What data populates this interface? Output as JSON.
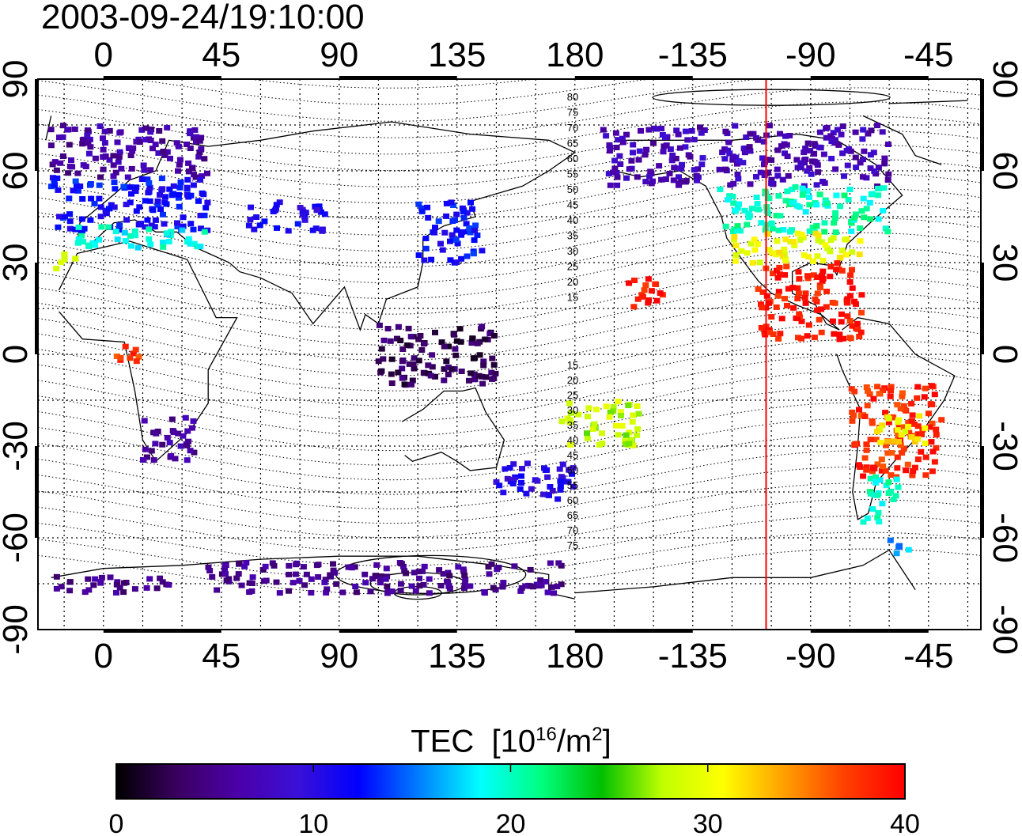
{
  "title": "2003-09-24/19:10:00",
  "map": {
    "lon_ticks": [
      "0",
      "45",
      "90",
      "135",
      "180",
      "-135",
      "-90",
      "-45"
    ],
    "lat_ticks": [
      "90",
      "60",
      "30",
      "0",
      "-30",
      "-60",
      "-90"
    ],
    "lon_range": [
      -25,
      335
    ],
    "lat_range": [
      -90,
      90
    ],
    "grid": "dotted, every 15 degrees",
    "terminator_line": {
      "color": "#ff0000",
      "lon": -107
    },
    "contour_labels_north": [
      "80",
      "75",
      "70",
      "65",
      "60",
      "55",
      "50",
      "45",
      "40",
      "35",
      "30",
      "25",
      "20",
      "15"
    ],
    "contour_labels_south": [
      "15",
      "20",
      "25",
      "30",
      "35",
      "40",
      "45",
      "50",
      "55",
      "60",
      "65",
      "70",
      "75"
    ]
  },
  "colorbar": {
    "title_main": "TEC",
    "title_unit_pre": "[10",
    "title_unit_exp": "16",
    "title_unit_mid": "/m",
    "title_unit_exp2": "2",
    "title_unit_post": "]",
    "ticks": [
      "0",
      "10",
      "20",
      "30",
      "40"
    ],
    "range": [
      0,
      40
    ],
    "colors": [
      "#000000",
      "#3a0060",
      "#4b00a8",
      "#3a10d8",
      "#0000ff",
      "#0080ff",
      "#00ffff",
      "#00ff80",
      "#00c000",
      "#c0ff00",
      "#ffff00",
      "#ffa000",
      "#ff4000",
      "#ff0000"
    ]
  },
  "chart_data": {
    "type": "heatmap",
    "title": "2003-09-24/19:10:00",
    "xlabel": "",
    "ylabel": "",
    "colorbar_label": "TEC [10^16/m^2]",
    "colorbar_range": [
      0,
      40
    ],
    "regions": [
      {
        "lon": [
          -20,
          40
        ],
        "lat": [
          58,
          75
        ],
        "tec": 6
      },
      {
        "lon": [
          -20,
          40
        ],
        "lat": [
          40,
          58
        ],
        "tec": 12
      },
      {
        "lon": [
          -10,
          40
        ],
        "lat": [
          35,
          42
        ],
        "tec": 19
      },
      {
        "lon": [
          -20,
          -10
        ],
        "lat": [
          28,
          33
        ],
        "tec": 30
      },
      {
        "lon": [
          5,
          15
        ],
        "lat": [
          -5,
          3
        ],
        "tec": 38
      },
      {
        "lon": [
          15,
          35
        ],
        "lat": [
          -35,
          -20
        ],
        "tec": 6
      },
      {
        "lon": [
          55,
          85
        ],
        "lat": [
          40,
          50
        ],
        "tec": 11
      },
      {
        "lon": [
          120,
          145
        ],
        "lat": [
          30,
          50
        ],
        "tec": 12
      },
      {
        "lon": [
          105,
          150
        ],
        "lat": [
          -10,
          10
        ],
        "tec": 3
      },
      {
        "lon": [
          150,
          180
        ],
        "lat": [
          -48,
          -35
        ],
        "tec": 10
      },
      {
        "lon": [
          175,
          205
        ],
        "lat": [
          -30,
          -15
        ],
        "tec": 28
      },
      {
        "lon": [
          200,
          215
        ],
        "lat": [
          15,
          25
        ],
        "tec": 39
      },
      {
        "lon": [
          190,
          230
        ],
        "lat": [
          55,
          75
        ],
        "tec": 7
      },
      {
        "lon": [
          235,
          300
        ],
        "lat": [
          55,
          75
        ],
        "tec": 7
      },
      {
        "lon": [
          235,
          300
        ],
        "lat": [
          40,
          55
        ],
        "tec": 20
      },
      {
        "lon": [
          240,
          290
        ],
        "lat": [
          30,
          40
        ],
        "tec": 30
      },
      {
        "lon": [
          250,
          290
        ],
        "lat": [
          5,
          30
        ],
        "tec": 39
      },
      {
        "lon": [
          285,
          320
        ],
        "lat": [
          -40,
          -10
        ],
        "tec": 38
      },
      {
        "lon": [
          295,
          315
        ],
        "lat": [
          -30,
          -20
        ],
        "tec": 31
      },
      {
        "lon": [
          290,
          305
        ],
        "lat": [
          -55,
          -40
        ],
        "tec": 20
      },
      {
        "lon": [
          300,
          310
        ],
        "lat": [
          -65,
          -60
        ],
        "tec": 16
      },
      {
        "lon": [
          40,
          175
        ],
        "lat": [
          -78,
          -68
        ],
        "tec": 5
      },
      {
        "lon": [
          -20,
          25
        ],
        "lat": [
          -78,
          -72
        ],
        "tec": 5
      }
    ]
  }
}
